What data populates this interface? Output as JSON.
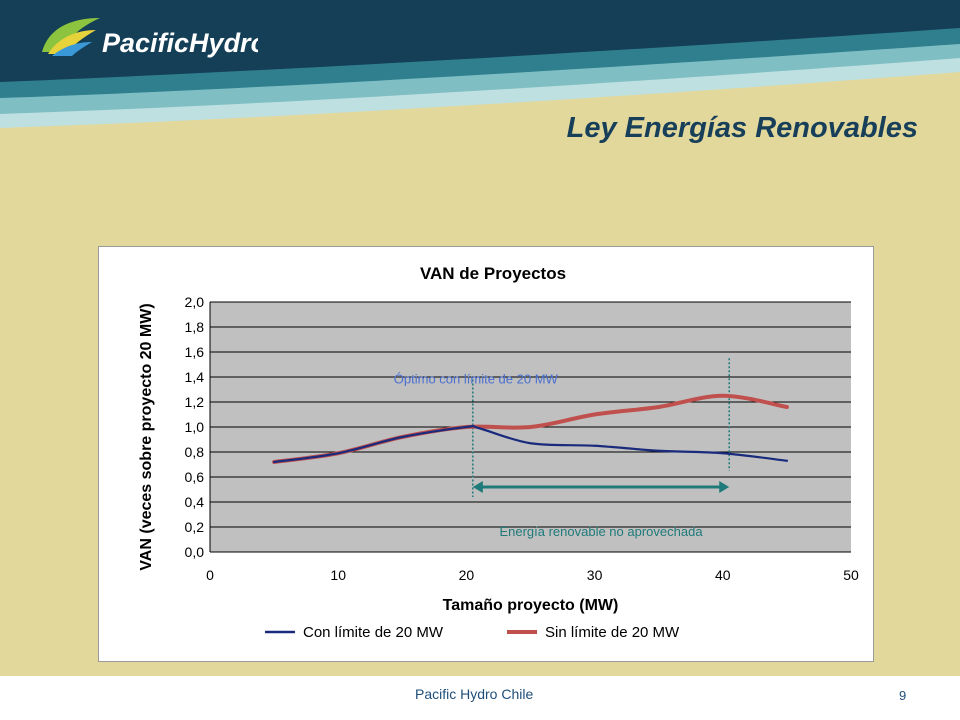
{
  "slide": {
    "title": "Ley Energías Renovables",
    "logo_text": "PacificHydro",
    "footer": "Pacific Hydro Chile",
    "page_number": "9"
  },
  "colors": {
    "slide_background": "#e2d89c",
    "header_dark": "#143f57",
    "series_con_limite": "#1a2a7c",
    "series_sin_limite": "#c0504d",
    "annotation": "#1f7a7a",
    "plot_background": "#c0c0c0"
  },
  "chart_data": {
    "type": "line",
    "title": "VAN de Proyectos",
    "xlabel": "Tamaño proyecto (MW)",
    "ylabel": "VAN (veces sobre proyecto 20 MW)",
    "xlim": [
      0,
      50
    ],
    "ylim": [
      0,
      2
    ],
    "x_ticks": [
      "0",
      "10",
      "20",
      "30",
      "40",
      "50"
    ],
    "y_ticks": [
      "0,0",
      "0,2",
      "0,4",
      "0,6",
      "0,8",
      "1,0",
      "1,2",
      "1,4",
      "1,6",
      "1,8",
      "2,0"
    ],
    "grid": true,
    "legend_position": "bottom",
    "series": [
      {
        "name": "Con límite de 20 MW",
        "x": [
          5,
          10,
          15,
          20,
          21,
          25,
          30,
          35,
          40,
          45
        ],
        "values": [
          0.72,
          0.79,
          0.92,
          1.0,
          0.99,
          0.87,
          0.85,
          0.81,
          0.79,
          0.73
        ]
      },
      {
        "name": "Sin límite de 20 MW",
        "x": [
          5,
          10,
          15,
          20,
          25,
          30,
          35,
          40,
          45
        ],
        "values": [
          0.72,
          0.79,
          0.92,
          1.0,
          1.0,
          1.1,
          1.16,
          1.25,
          1.16
        ]
      }
    ],
    "annotations": {
      "optimo_label": "Óptimo con límite de 20 MW",
      "optimo_x": 20.5,
      "max_x": 40.5,
      "range_label": "Energía renovable no aprovechada"
    }
  }
}
